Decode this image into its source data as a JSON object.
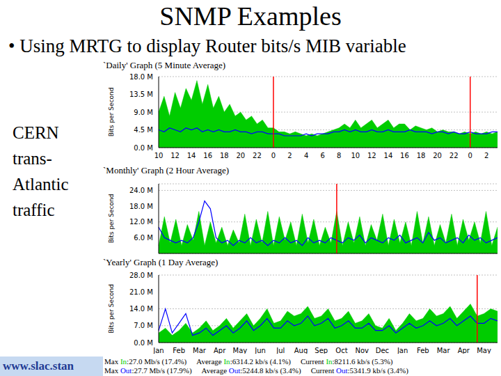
{
  "slide": {
    "title": "SNMP Examples",
    "bullet": "• Using MRTG to display Router bits/s MIB variable",
    "side_text": [
      "CERN",
      "trans-",
      "Atlantic",
      "traffic"
    ],
    "url": "www.slac.stan",
    "stats": [
      {
        "series": "In",
        "items": [
          {
            "label": "Max",
            "value": ":27.0 Mb/s (17.4%)"
          },
          {
            "label": "Average",
            "value": ":6314.2 kb/s (4.1%)"
          },
          {
            "label": "Current",
            "value": ":8211.6 kb/s (5.3%)"
          }
        ]
      },
      {
        "series": "Out",
        "items": [
          {
            "label": "Max",
            "value": ":27.7 Mb/s (17.9%)"
          },
          {
            "label": "Average",
            "value": ":5244.8 kb/s (3.4%)"
          },
          {
            "label": "Current",
            "value": ":5341.9 kb/s (3.4%)"
          }
        ]
      }
    ]
  },
  "chart_data": [
    {
      "type": "area",
      "title": "`Daily' Graph (5 Minute Average)",
      "y_label": "Bits per Second",
      "categories": [
        "10",
        null,
        null,
        "12",
        null,
        null,
        "14",
        null,
        null,
        "16",
        null,
        null,
        "18",
        null,
        null,
        "20",
        null,
        null,
        "22",
        null,
        null,
        "0",
        null,
        null,
        "2",
        null,
        null,
        "4",
        null,
        null,
        "6",
        null,
        null,
        "8",
        null,
        null,
        "10",
        null,
        null,
        "12",
        null,
        null,
        "14",
        null,
        null,
        "16",
        null,
        null,
        "18",
        null,
        null,
        "20",
        null,
        null,
        "22",
        null,
        null,
        "0",
        null,
        null,
        "2",
        null,
        null
      ],
      "series": [
        {
          "name": "In",
          "type": "area",
          "color": "#00cc00",
          "values": [
            9,
            13,
            8,
            14,
            10,
            15,
            12,
            17,
            11,
            16,
            10,
            13,
            9,
            11,
            8,
            9,
            7,
            8,
            6,
            7,
            5,
            5,
            4,
            4,
            3.5,
            4,
            3.5,
            3,
            3.5,
            3,
            3.5,
            4,
            4.5,
            5,
            6,
            5,
            7,
            5,
            6,
            7,
            5,
            6,
            7,
            5,
            6,
            6,
            4.5,
            5.5,
            5,
            4.5,
            5,
            4,
            4.5,
            4,
            4,
            3.5,
            4,
            3.5,
            4,
            3.5,
            4,
            3.5,
            4
          ]
        },
        {
          "name": "Out",
          "type": "line",
          "color": "#0000ff",
          "values": [
            4.5,
            4,
            5,
            4.5,
            4,
            5,
            4.5,
            5,
            4,
            4.5,
            4,
            4.5,
            4,
            4,
            4.5,
            4,
            4,
            3.5,
            4,
            4,
            3.5,
            3.5,
            3.5,
            3,
            3,
            3,
            3,
            3.5,
            3,
            3.5,
            3.5,
            3.5,
            4,
            4,
            4.5,
            4,
            4.5,
            4,
            4,
            4.5,
            4,
            4,
            4.5,
            4,
            4,
            4,
            4.5,
            4,
            4,
            4,
            3.5,
            4,
            4,
            3.5,
            4,
            3.5,
            3.5,
            4,
            3.5,
            3.5,
            3.5,
            4,
            4
          ]
        }
      ],
      "reference_lines": [
        {
          "x": 21,
          "color": "#ff0000"
        },
        {
          "x": 57,
          "color": "#ff0000"
        }
      ],
      "ylim": [
        0,
        18
      ],
      "yticks": [
        {
          "value": 0,
          "label": "0.0 M"
        },
        {
          "value": 4.5,
          "label": "4.5 M"
        },
        {
          "value": 9,
          "label": "9.0 M"
        },
        {
          "value": 13.5,
          "label": "13.5 M"
        },
        {
          "value": 18,
          "label": "18.0 M"
        }
      ],
      "grid": true
    },
    {
      "type": "area",
      "title": "`Monthly' Graph (2 Hour Average)",
      "y_label": "Bits per Second",
      "categories": [
        null,
        null,
        null,
        null,
        null,
        null,
        null,
        null,
        null,
        null,
        null,
        null,
        null,
        null,
        null,
        null,
        null,
        null,
        null,
        null,
        null,
        null,
        null,
        null,
        null,
        null,
        null,
        null,
        null,
        null,
        null,
        null,
        null,
        null,
        null,
        null,
        null,
        null,
        null,
        null,
        null,
        null,
        null,
        null,
        null,
        null,
        null,
        null,
        null,
        null,
        null,
        null,
        null,
        null,
        null,
        null,
        null,
        null,
        null,
        null
      ],
      "series": [
        {
          "name": "In",
          "type": "area",
          "color": "#00cc00",
          "values": [
            3,
            14,
            4,
            13,
            3,
            11,
            5,
            16,
            3,
            12,
            4,
            10,
            3,
            9,
            4,
            15,
            3,
            13,
            4,
            16,
            3,
            14,
            5,
            12,
            3,
            15,
            4,
            13,
            3,
            10,
            4,
            16,
            3,
            12,
            4,
            14,
            3,
            11,
            5,
            15,
            3,
            13,
            4,
            12,
            3,
            16,
            4,
            14,
            3,
            11,
            4,
            15,
            3,
            13,
            5,
            12,
            4,
            16,
            3,
            10
          ]
        },
        {
          "name": "Out",
          "type": "line",
          "color": "#0000ff",
          "values": [
            10,
            6,
            5,
            4,
            5,
            4,
            6,
            12,
            20,
            17,
            6,
            4,
            5,
            3,
            5,
            4,
            6,
            4,
            5,
            3,
            5,
            4,
            6,
            4,
            5,
            3,
            6,
            4,
            5,
            4,
            6,
            5,
            4,
            6,
            5,
            7,
            4,
            6,
            5,
            4,
            6,
            5,
            7,
            4,
            5,
            6,
            4,
            8,
            5,
            6,
            4,
            5,
            6,
            4,
            7,
            5,
            6,
            4,
            5,
            6
          ]
        }
      ],
      "reference_lines": [
        {
          "x": 31,
          "color": "#ff0000"
        }
      ],
      "ylim": [
        0,
        26.5
      ],
      "yticks": [
        {
          "value": 6,
          "label": "6.0 M"
        },
        {
          "value": 12,
          "label": "12.0 M"
        },
        {
          "value": 18,
          "label": "18.0 M"
        },
        {
          "value": 24,
          "label": "24.0 M"
        }
      ],
      "grid": true,
      "tick_labels": "y"
    },
    {
      "type": "area",
      "title": "`Yearly' Graph (1 Day Average)",
      "y_label": "Bits per Second",
      "categories": [
        "Jan",
        null,
        null,
        "Feb",
        null,
        null,
        "Mar",
        null,
        null,
        "Apr",
        null,
        null,
        "May",
        null,
        null,
        "Jun",
        null,
        null,
        "Jul",
        null,
        null,
        "Aug",
        null,
        null,
        "Sep",
        null,
        null,
        "Oct",
        null,
        null,
        "Nov",
        null,
        null,
        "Dec",
        null,
        null,
        "Jan",
        null,
        null,
        "Feb",
        null,
        null,
        "Mar",
        null,
        null,
        "Apr",
        null,
        null,
        "May",
        null,
        null
      ],
      "series": [
        {
          "name": "In",
          "type": "area",
          "color": "#00cc00",
          "values": [
            4,
            6,
            3,
            5,
            8,
            4,
            6,
            9,
            5,
            7,
            10,
            6,
            9,
            12,
            7,
            10,
            14,
            8,
            9,
            13,
            11,
            12,
            15,
            10,
            11,
            14,
            9,
            10,
            13,
            8,
            9,
            12,
            7,
            6,
            10,
            5,
            8,
            12,
            9,
            10,
            14,
            11,
            12,
            15,
            10,
            13,
            16,
            11,
            12,
            14,
            13
          ]
        },
        {
          "name": "Out",
          "type": "line",
          "color": "#0000ff",
          "values": [
            5,
            14,
            4,
            8,
            12,
            3,
            4,
            6,
            3,
            5,
            7,
            4,
            6,
            9,
            5,
            7,
            10,
            6,
            6,
            9,
            7,
            8,
            11,
            7,
            8,
            10,
            6,
            7,
            9,
            6,
            6,
            8,
            5,
            5,
            7,
            4,
            6,
            8,
            6,
            7,
            9,
            7,
            8,
            10,
            7,
            9,
            11,
            8,
            8,
            10,
            9
          ]
        }
      ],
      "reference_lines": [
        {
          "x": 47,
          "color": "#ff0000"
        }
      ],
      "ylim": [
        0,
        28
      ],
      "yticks": [
        {
          "value": 0,
          "label": "0.0 M"
        },
        {
          "value": 7,
          "label": "7.0 M"
        },
        {
          "value": 14,
          "label": "14.0 M"
        },
        {
          "value": 21,
          "label": "21.0 M"
        },
        {
          "value": 28,
          "label": "28.0 M"
        }
      ],
      "grid": true
    }
  ]
}
